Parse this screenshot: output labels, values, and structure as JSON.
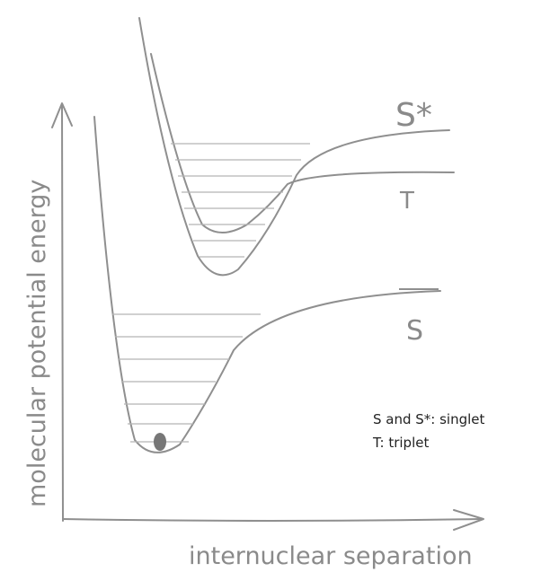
{
  "axes": {
    "y_label": "molecular potential energy",
    "x_label": "internuclear separation"
  },
  "curves": [
    {
      "label": "S*"
    },
    {
      "label": "T"
    },
    {
      "label": "S"
    }
  ],
  "legend": [
    "S and S*: singlet",
    "T: triplet"
  ]
}
